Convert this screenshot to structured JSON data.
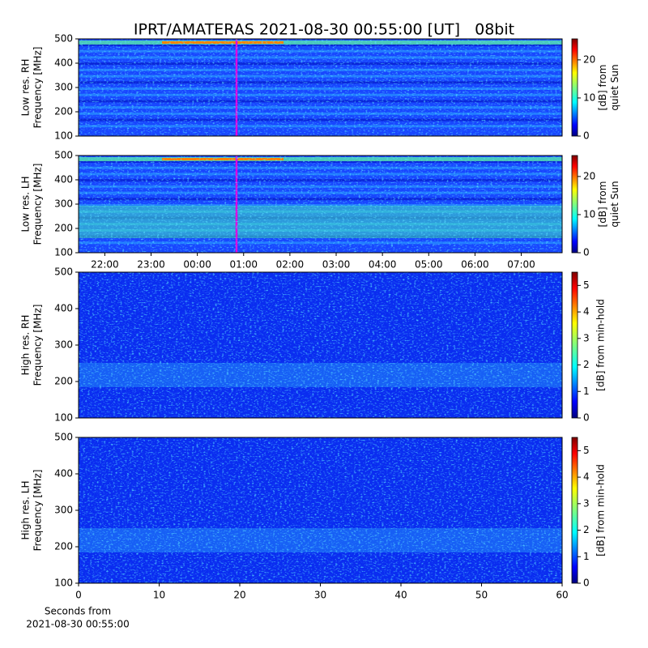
{
  "title": "IPRT/AMATERAS 2021-08-30 00:55:00 [UT]   08bit",
  "chart_data": [
    {
      "type": "heatmap",
      "ylabel": [
        "Low res. RH",
        "Frequency [MHz]"
      ],
      "ylim": [
        100,
        500
      ],
      "yticks": [
        100,
        200,
        300,
        400,
        500
      ],
      "colorbar_label": [
        "[dB] from",
        "quiet Sun"
      ],
      "clim": [
        0,
        25.5
      ],
      "cticks": [
        0,
        10,
        20
      ]
    },
    {
      "type": "heatmap",
      "ylabel": [
        "Low res. LH",
        "Frequency [MHz]"
      ],
      "ylim": [
        100,
        500
      ],
      "yticks": [
        100,
        200,
        300,
        400,
        500
      ],
      "xlim": [
        "21:26",
        "07:53"
      ],
      "xticks": [
        "22:00",
        "23:00",
        "00:00",
        "01:00",
        "02:00",
        "03:00",
        "04:00",
        "05:00",
        "06:00",
        "07:00"
      ],
      "colorbar_label": [
        "[dB] from",
        "quiet Sun"
      ],
      "clim": [
        0,
        25.5
      ],
      "cticks": [
        0,
        10,
        20
      ]
    },
    {
      "type": "heatmap",
      "ylabel": [
        "High res. RH",
        "Frequency [MHz]"
      ],
      "ylim": [
        100,
        500
      ],
      "yticks": [
        100,
        200,
        300,
        400,
        500
      ],
      "colorbar_label": [
        "[dB] from min-hold"
      ],
      "clim": [
        0,
        5.5
      ],
      "cticks": [
        0,
        1,
        2,
        3,
        4,
        5
      ]
    },
    {
      "type": "heatmap",
      "ylabel": [
        "High res. LH",
        "Frequency [MHz]"
      ],
      "ylim": [
        100,
        500
      ],
      "yticks": [
        100,
        200,
        300,
        400,
        500
      ],
      "xlim": [
        0,
        60
      ],
      "xticks": [
        0,
        10,
        20,
        30,
        40,
        50,
        60
      ],
      "xlabel": [
        "Seconds from",
        "2021-08-30 00:55:00"
      ],
      "colorbar_label": [
        "[dB] from min-hold"
      ],
      "clim": [
        0,
        5.5
      ],
      "cticks": [
        0,
        1,
        2,
        3,
        4,
        5
      ]
    }
  ]
}
